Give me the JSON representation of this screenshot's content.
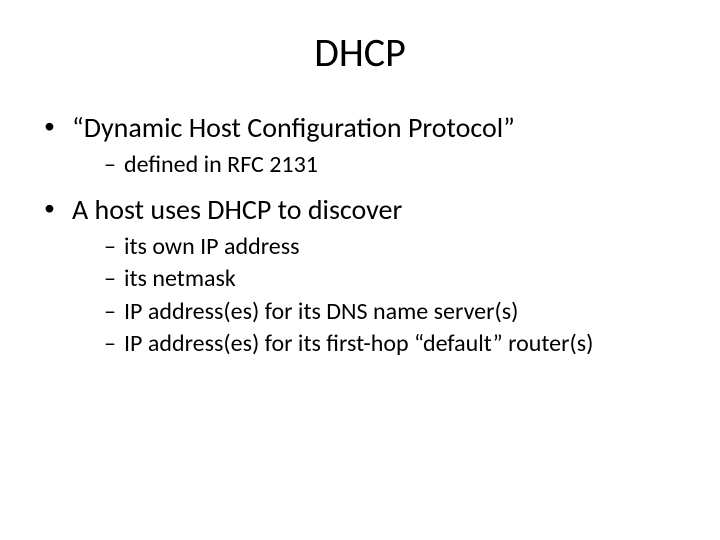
{
  "slide": {
    "title": "DHCP",
    "background_color": "#ffffff",
    "text_color": "#000000",
    "title_fontsize": 40,
    "level1_fontsize": 28,
    "level2_fontsize": 24,
    "bullets": [
      {
        "text": "“Dynamic Host Configuration Protocol”",
        "sub": [
          "defined in RFC 2131"
        ]
      },
      {
        "text": "A host uses DHCP to discover",
        "sub": [
          "its own IP address",
          "its netmask",
          "IP address(es) for its DNS name server(s)",
          "IP address(es) for its first-hop “default” router(s)"
        ]
      }
    ]
  }
}
